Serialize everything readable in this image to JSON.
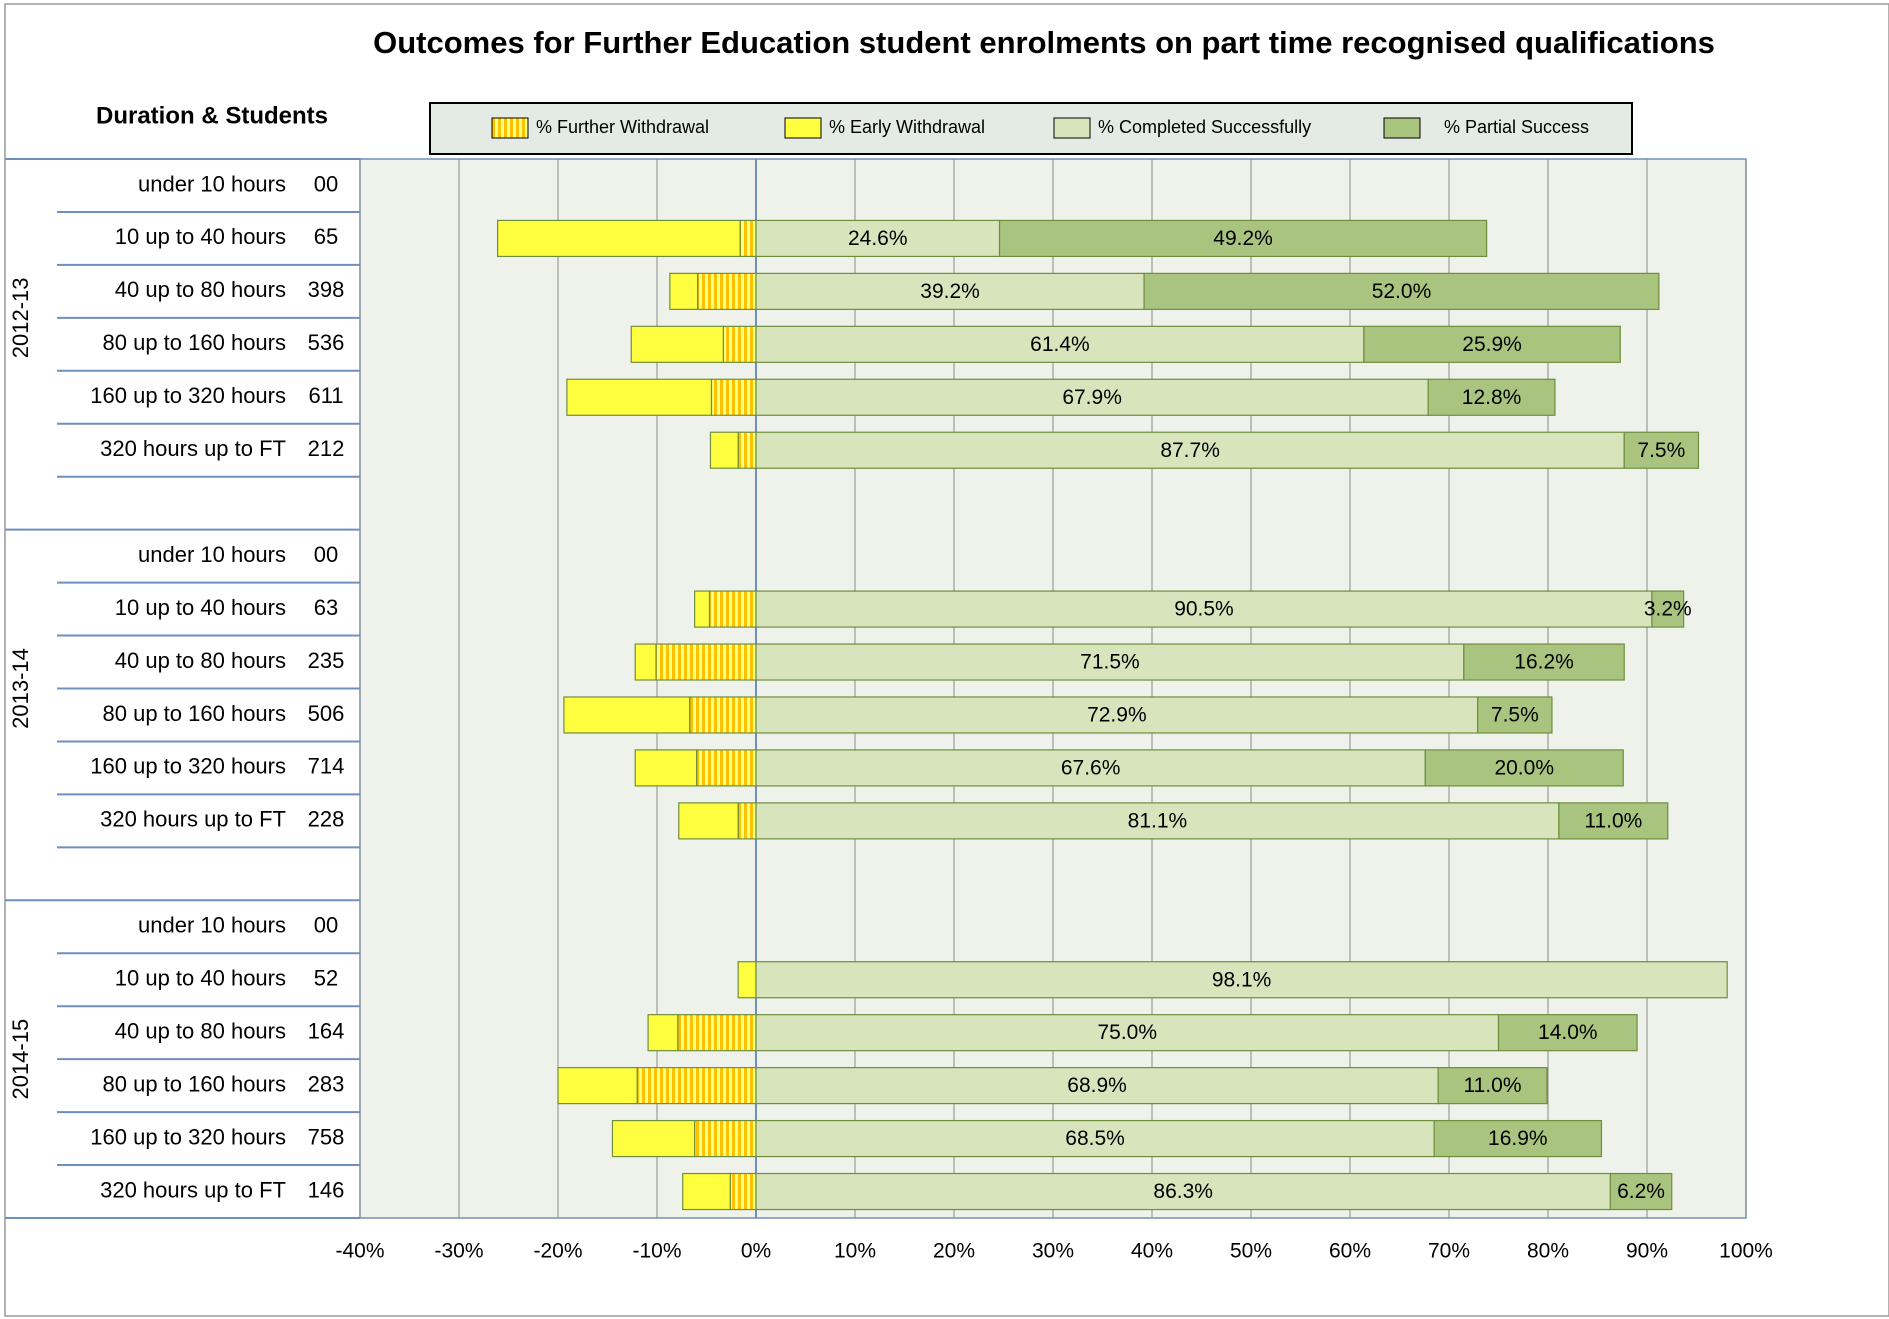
{
  "chart_data": {
    "type": "diverging-stacked-bar",
    "title": "Outcomes for Further Education student enrolments on part time recognised qualifications",
    "table_header": "Duration & Students",
    "groups": [
      "2012-13",
      "2013-14",
      "2014-15"
    ],
    "categories": [
      "under 10 hours",
      "10 up to 40 hours",
      "40 up to 80 hours",
      "80 up to 160 hours",
      "160 up to 320 hours",
      "320 hours up to FT",
      "under 10 hours",
      "10 up to 40 hours",
      "40 up to 80 hours",
      "80 up to 160 hours",
      "160 up to 320 hours",
      "320 hours up to FT",
      "under 10 hours",
      "10 up to 40 hours",
      "40 up to 80 hours",
      "80 up to 160 hours",
      "160 up to 320 hours",
      "320 hours up to FT"
    ],
    "students": [
      "00",
      "65",
      "398",
      "536",
      "611",
      "212",
      "00",
      "63",
      "235",
      "506",
      "714",
      "228",
      "00",
      "52",
      "164",
      "283",
      "758",
      "146"
    ],
    "series": [
      {
        "name": "% Further Withdrawal",
        "color": "#ffc000",
        "hatched": true,
        "values": [
          null,
          -1.6,
          -5.9,
          -3.3,
          -4.5,
          -1.8,
          null,
          -4.7,
          -10.1,
          -6.7,
          -6.0,
          -1.8,
          null,
          0,
          -7.9,
          -12.0,
          -6.2,
          -2.6
        ]
      },
      {
        "name": "% Early Withdrawal",
        "color": "#ffff40",
        "values": [
          null,
          -24.5,
          -2.8,
          -9.3,
          -14.6,
          -2.8,
          null,
          -1.5,
          -2.1,
          -12.7,
          -6.2,
          -6.0,
          null,
          -1.8,
          -3.0,
          -8.0,
          -8.3,
          -4.8
        ]
      },
      {
        "name": "% Completed Successfully",
        "color": "#d8e4bc",
        "values": [
          null,
          24.6,
          39.2,
          61.4,
          67.9,
          87.7,
          null,
          90.5,
          71.5,
          72.9,
          67.6,
          81.1,
          null,
          98.1,
          75.0,
          68.9,
          68.5,
          86.3
        ],
        "value_labels": [
          null,
          "24.6%",
          "39.2%",
          "61.4%",
          "67.9%",
          "87.7%",
          null,
          "90.5%",
          "71.5%",
          "72.9%",
          "67.6%",
          "81.1%",
          null,
          "98.1%",
          "75.0%",
          "68.9%",
          "68.5%",
          "86.3%"
        ]
      },
      {
        "name": "% Partial Success",
        "color": "#a9c47f",
        "values": [
          null,
          49.2,
          52.0,
          25.9,
          12.8,
          7.5,
          null,
          3.2,
          16.2,
          7.5,
          20.0,
          11.0,
          null,
          null,
          14.0,
          11.0,
          16.9,
          6.2
        ],
        "value_labels": [
          null,
          "49.2%",
          "52.0%",
          "25.9%",
          "12.8%",
          "7.5%",
          null,
          "3.2%",
          "16.2%",
          "7.5%",
          "20.0%",
          "11.0%",
          null,
          null,
          "14.0%",
          "11.0%",
          "16.9%",
          "6.2%"
        ]
      }
    ],
    "xlim": [
      -40,
      100
    ],
    "xticks": [
      {
        "value": -40,
        "label": "-40%"
      },
      {
        "value": -30,
        "label": "-30%"
      },
      {
        "value": -20,
        "label": "-20%"
      },
      {
        "value": -10,
        "label": "-10%"
      },
      {
        "value": 0,
        "label": "0%"
      },
      {
        "value": 10,
        "label": "10%"
      },
      {
        "value": 20,
        "label": "20%"
      },
      {
        "value": 30,
        "label": "30%"
      },
      {
        "value": 40,
        "label": "40%"
      },
      {
        "value": 50,
        "label": "50%"
      },
      {
        "value": 60,
        "label": "60%"
      },
      {
        "value": 70,
        "label": "70%"
      },
      {
        "value": 80,
        "label": "80%"
      },
      {
        "value": 90,
        "label": "90%"
      },
      {
        "value": 100,
        "label": "100%"
      }
    ],
    "grid": true,
    "legend": "top"
  }
}
